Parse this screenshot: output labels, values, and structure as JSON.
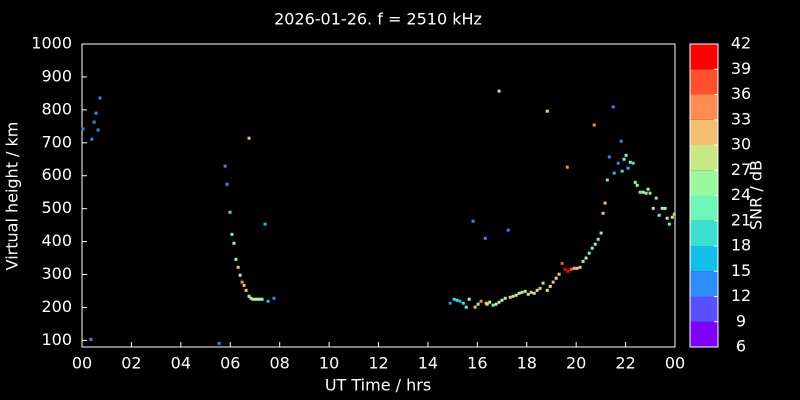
{
  "chart_data": {
    "type": "scatter",
    "title": "2026-01-26. f = 2510 kHz",
    "x_label": "UT Time / hrs",
    "y_label": "Virtual height / km",
    "xlim": [
      0,
      24
    ],
    "ylim": [
      80,
      1000
    ],
    "xticks": [
      {
        "value": 0,
        "label": "00"
      },
      {
        "value": 2,
        "label": "02"
      },
      {
        "value": 4,
        "label": "04"
      },
      {
        "value": 6,
        "label": "06"
      },
      {
        "value": 8,
        "label": "08"
      },
      10,
      12,
      14,
      16,
      18,
      20,
      22,
      {
        "value": 24,
        "label": "00"
      }
    ],
    "yticks": [
      100,
      200,
      300,
      400,
      500,
      600,
      700,
      800,
      900,
      1000
    ],
    "colorbar": {
      "label": "SNR / dB",
      "lim": [
        6,
        42
      ],
      "ticks": [
        6,
        9,
        12,
        15,
        18,
        21,
        24,
        27,
        30,
        33,
        36,
        39,
        42
      ],
      "colors": [
        "#8000ff",
        "#5a50ff",
        "#2c8cf8",
        "#10c0e8",
        "#3ce0d0",
        "#6cf8b8",
        "#9cf8a0",
        "#c8e888",
        "#f4c070",
        "#ff8c50",
        "#ff5030",
        "#ff0000"
      ]
    },
    "x": [
      0.04,
      0.36,
      0.4,
      0.49,
      0.57,
      0.65,
      0.73,
      5.55,
      5.79,
      5.87,
      5.99,
      6.07,
      6.15,
      6.23,
      6.32,
      6.4,
      6.48,
      6.56,
      6.64,
      6.76,
      6.84,
      6.92,
      7.04,
      7.13,
      7.21,
      7.29,
      6.76,
      7.41,
      7.53,
      7.77,
      14.9,
      15.06,
      15.18,
      15.3,
      15.43,
      15.55,
      15.67,
      15.83,
      15.91,
      16.03,
      16.15,
      16.32,
      16.36,
      16.4,
      16.5,
      16.64,
      16.76,
      16.88,
      16.88,
      17.0,
      17.13,
      17.25,
      17.33,
      17.45,
      17.57,
      17.69,
      17.81,
      17.94,
      18.06,
      18.18,
      18.3,
      18.42,
      18.54,
      18.66,
      18.83,
      18.83,
      18.95,
      19.07,
      19.19,
      19.31,
      19.43,
      19.55,
      19.64,
      19.67,
      19.8,
      19.92,
      20.04,
      20.16,
      20.28,
      20.4,
      20.53,
      20.65,
      20.77,
      20.73,
      20.89,
      21.01,
      21.09,
      21.17,
      21.26,
      21.34,
      21.5,
      21.54,
      21.7,
      21.82,
      21.86,
      21.94,
      22.02,
      22.1,
      22.19,
      22.31,
      22.39,
      22.47,
      22.59,
      22.71,
      22.83,
      22.91,
      22.99,
      23.12,
      23.24,
      23.36,
      23.48,
      23.6,
      23.68,
      23.77,
      23.89,
      23.97
    ],
    "values": [
      742,
      103,
      711,
      763,
      790,
      739,
      836,
      91,
      629,
      574,
      489,
      422,
      395,
      346,
      322,
      298,
      277,
      267,
      252,
      234,
      228,
      225,
      225,
      225,
      225,
      225,
      714,
      453,
      219,
      228,
      213,
      225,
      222,
      219,
      213,
      201,
      225,
      462,
      201,
      210,
      219,
      410,
      213,
      210,
      216,
      207,
      210,
      857,
      216,
      222,
      228,
      435,
      231,
      234,
      237,
      243,
      246,
      249,
      240,
      246,
      243,
      252,
      258,
      274,
      796,
      252,
      264,
      277,
      289,
      301,
      334,
      316,
      626,
      310,
      316,
      319,
      319,
      322,
      340,
      350,
      365,
      380,
      392,
      754,
      407,
      426,
      486,
      517,
      587,
      657,
      809,
      608,
      638,
      705,
      614,
      650,
      662,
      623,
      641,
      638,
      580,
      571,
      550,
      550,
      547,
      559,
      547,
      501,
      532,
      480,
      501,
      501,
      471,
      453,
      474,
      483
    ],
    "snr": [
      13,
      13,
      13,
      13,
      13,
      13,
      13,
      13,
      12,
      14,
      18,
      22,
      24,
      29,
      30,
      29,
      33,
      31,
      30,
      28,
      26,
      27,
      26,
      25,
      24,
      21,
      31,
      15,
      17,
      14,
      13,
      18,
      19,
      17,
      19,
      22,
      28,
      13,
      30,
      26,
      33,
      12,
      30,
      28,
      27,
      21,
      25,
      28,
      29,
      27,
      26,
      14,
      31,
      30,
      26,
      27,
      28,
      27,
      29,
      30,
      29,
      28,
      30,
      27,
      27,
      28,
      29,
      31,
      29,
      30,
      38,
      39,
      33,
      40,
      37,
      30,
      32,
      30,
      25,
      24,
      23,
      27,
      29,
      34,
      22,
      22,
      31,
      30,
      22,
      14,
      13,
      15,
      14,
      13,
      18,
      22,
      21,
      15,
      21,
      20,
      24,
      26,
      23,
      26,
      28,
      25,
      22,
      27,
      21,
      22,
      24,
      25,
      28,
      22,
      26,
      30
    ]
  }
}
